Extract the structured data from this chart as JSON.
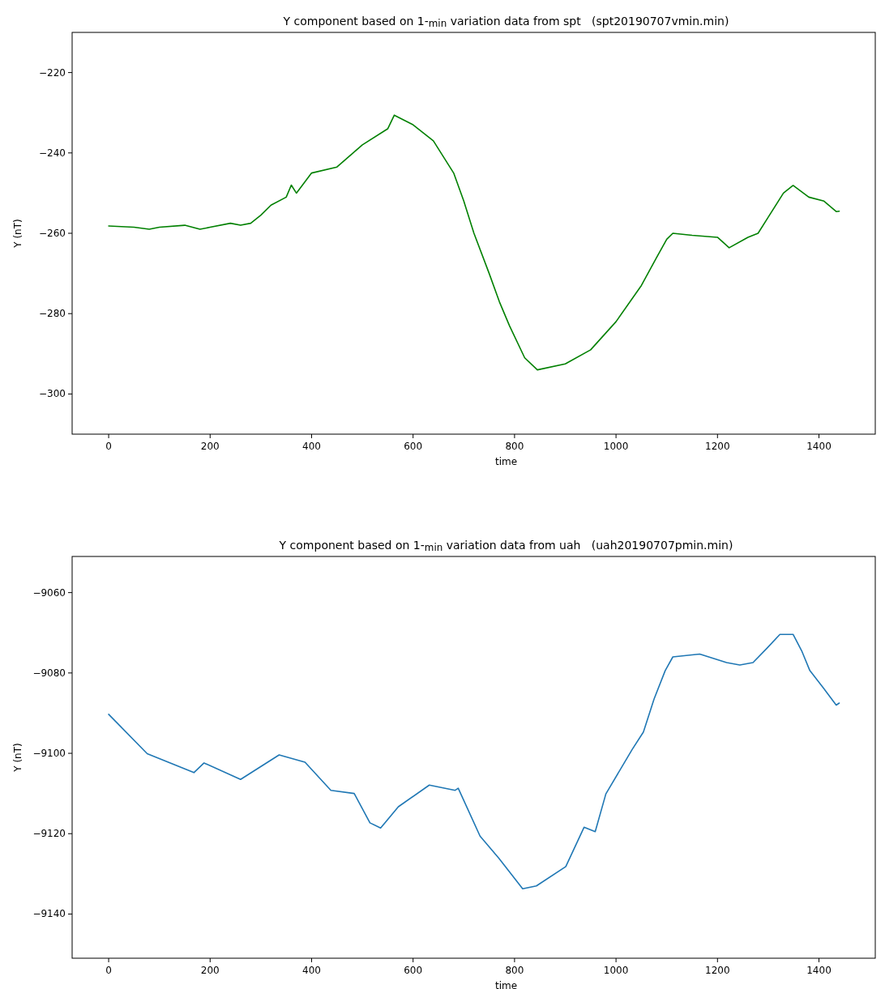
{
  "chart_data": [
    {
      "type": "line",
      "title": "Y component based on 1-$_{min}$ variation data from spt   (spt20190707vmin.min)",
      "xlabel": "time",
      "ylabel": "Y (nT)",
      "xlim": [
        -72,
        1511
      ],
      "ylim": [
        -310,
        -210
      ],
      "xticks": [
        0,
        200,
        400,
        600,
        800,
        1000,
        1200,
        1400
      ],
      "yticks": [
        -300,
        -280,
        -260,
        -240,
        -220
      ],
      "series": [
        {
          "color": "#008000",
          "x": [
            0,
            50,
            80,
            100,
            150,
            180,
            200,
            240,
            260,
            280,
            300,
            320,
            350,
            360,
            370,
            400,
            450,
            500,
            550,
            563,
            600,
            640,
            680,
            700,
            720,
            750,
            770,
            790,
            820,
            845,
            900,
            950,
            1000,
            1050,
            1080,
            1100,
            1112,
            1150,
            1200,
            1223,
            1260,
            1280,
            1300,
            1330,
            1349,
            1380,
            1410,
            1434,
            1440
          ],
          "values": [
            -258.2,
            -258.5,
            -259,
            -258.5,
            -258,
            -259,
            -258.5,
            -257.5,
            -258,
            -257.5,
            -255.5,
            -253,
            -251,
            -248,
            -250,
            -245,
            -243.5,
            -238,
            -234,
            -230.6,
            -233,
            -237,
            -245,
            -252,
            -260,
            -270,
            -277,
            -283,
            -291,
            -294,
            -292.5,
            -289,
            -282,
            -273,
            -266,
            -261.5,
            -260,
            -260.5,
            -261,
            -263.6,
            -261,
            -260,
            -256,
            -250,
            -248.1,
            -251,
            -252,
            -254.6,
            -254.5
          ]
        }
      ]
    },
    {
      "type": "line",
      "title": "Y component based on 1-$_{min}$ variation data from uah   (uah20190707pmin.min)",
      "xlabel": "time",
      "ylabel": "Y (nT)",
      "xlim": [
        -72,
        1511
      ],
      "ylim": [
        -9151,
        -9051
      ],
      "xticks": [
        0,
        200,
        400,
        600,
        800,
        1000,
        1200,
        1400
      ],
      "yticks": [
        -9140,
        -9120,
        -9100,
        -9080,
        -9060
      ],
      "series": [
        {
          "color": "#1f77b4",
          "x": [
            0,
            76,
            168,
            188,
            260,
            336,
            387,
            438,
            484,
            515,
            536,
            571,
            632,
            683,
            689,
            732,
            769,
            816,
            843,
            901,
            937,
            959,
            980,
            1032,
            1054,
            1075,
            1097,
            1112,
            1165,
            1218,
            1244,
            1270,
            1297,
            1323,
            1349,
            1366,
            1382,
            1408,
            1434,
            1440
          ],
          "values": [
            -9090.3,
            -9100.1,
            -9104.8,
            -9102.4,
            -9106.5,
            -9100.4,
            -9102.2,
            -9109.2,
            -9110,
            -9117.3,
            -9118.6,
            -9113.3,
            -9107.9,
            -9109.2,
            -9108.7,
            -9120.6,
            -9126.1,
            -9133.7,
            -9133,
            -9128.2,
            -9118.4,
            -9119.5,
            -9110.1,
            -9099,
            -9094.7,
            -9086.5,
            -9079.4,
            -9076,
            -9075.3,
            -9077.4,
            -9078,
            -9077.4,
            -9073.9,
            -9070.4,
            -9070.4,
            -9074.5,
            -9079.4,
            -9083.6,
            -9088,
            -9087.5
          ]
        }
      ]
    }
  ]
}
